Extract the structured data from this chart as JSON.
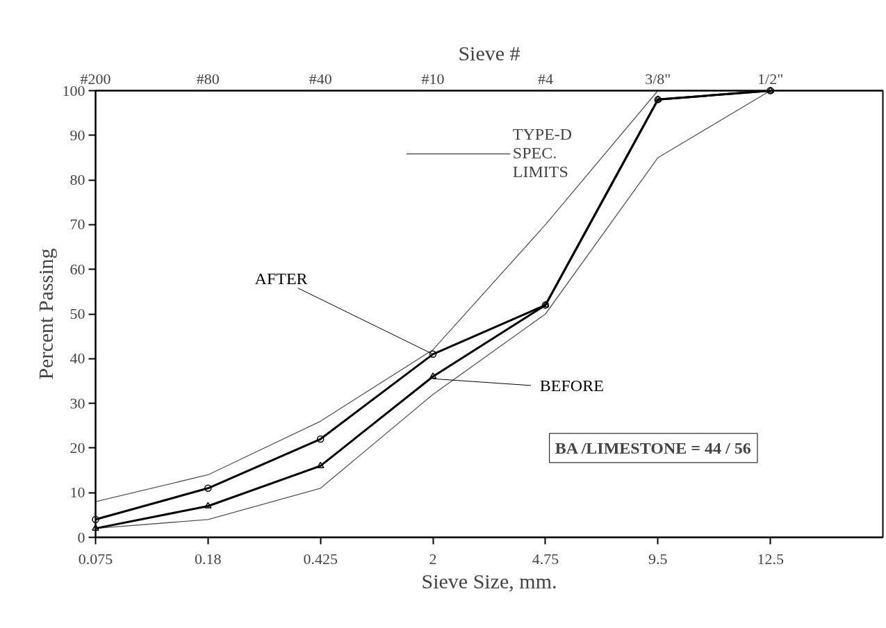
{
  "chart_data": {
    "type": "line",
    "categories": [
      "0.075",
      "0.18",
      "0.425",
      "2",
      "4.75",
      "9.5",
      "12.5",
      null
    ],
    "xlabel": "Sieve Size, mm.",
    "ylabel": "Percent Passing",
    "x2label": "Sieve #",
    "ylim": [
      0,
      100
    ],
    "yticks": [
      0,
      10,
      20,
      30,
      40,
      50,
      60,
      70,
      80,
      90,
      100
    ],
    "series": [
      {
        "name": "TYPE-D\nSPEC.\nLIMITS",
        "color": "#555555",
        "marker": "none",
        "values": [
          8,
          14,
          26,
          42,
          70,
          100,
          100,
          null
        ]
      },
      {
        "color": "#555555",
        "marker": "none",
        "values": [
          2,
          4,
          11,
          32,
          50,
          85,
          100,
          null
        ]
      },
      {
        "name": "AFTER",
        "color": "#000000",
        "marker": "circle",
        "values": [
          4,
          11,
          22,
          41,
          52,
          98,
          100,
          null
        ]
      },
      {
        "name": "BEFORE",
        "color": "#000000",
        "marker": "triangle",
        "values": [
          2,
          7,
          16,
          36,
          52,
          98,
          100,
          null
        ]
      }
    ],
    "legend": "top",
    "grid": false,
    "annotations": [
      "BA /LIMESTONE = 44 / 56",
      "#200",
      "#80",
      "#40",
      "#10",
      "#4",
      "3/8\"",
      "1/2\""
    ]
  }
}
